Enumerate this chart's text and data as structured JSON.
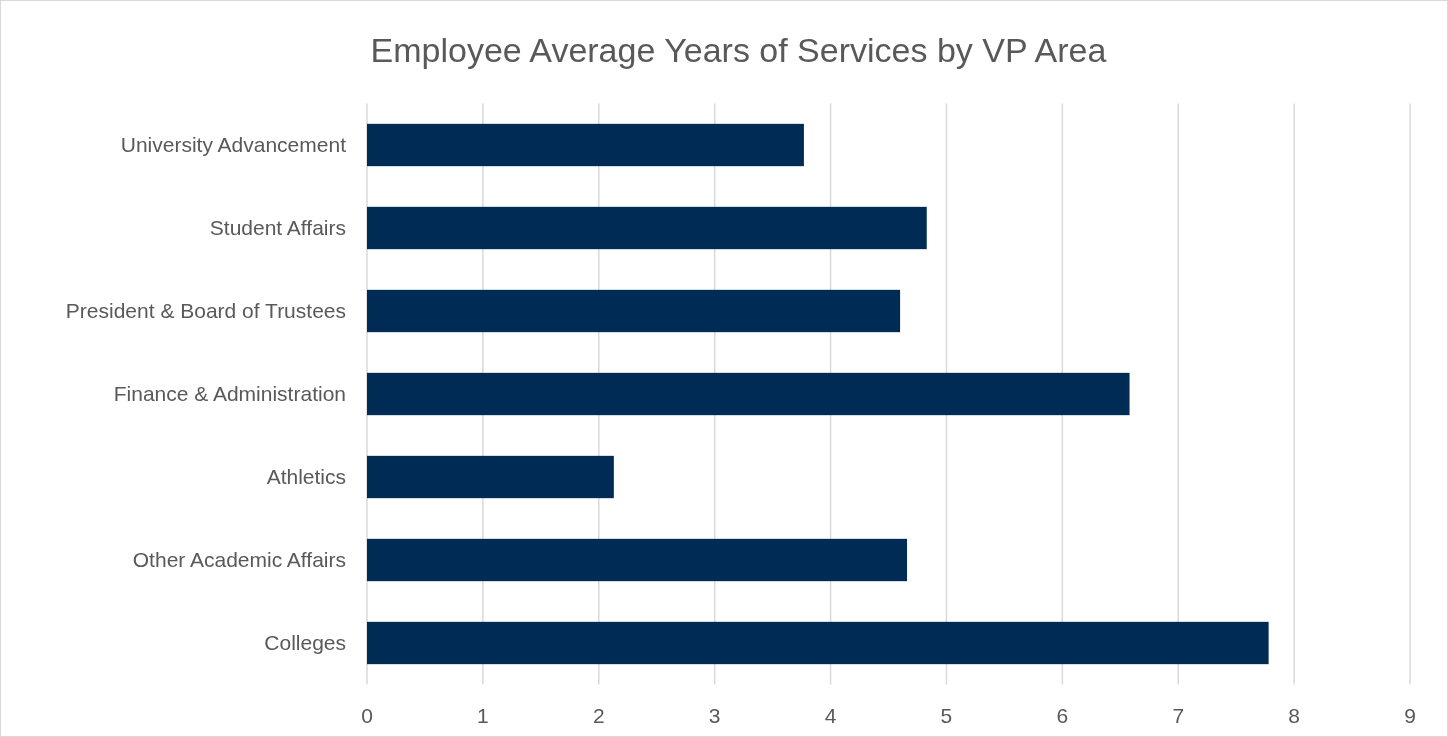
{
  "chart_data": {
    "type": "bar",
    "orientation": "horizontal",
    "title": "Employee Average Years of Services by VP Area",
    "categories": [
      "University Advancement",
      "Student Affairs",
      "President & Board of Trustees",
      "Finance & Administration",
      "Athletics",
      "Other Academic Affairs",
      "Colleges"
    ],
    "values": [
      3.77,
      4.83,
      4.6,
      6.58,
      2.13,
      4.66,
      7.78
    ],
    "color": "#002b55",
    "xlim": [
      0,
      9
    ],
    "xticks": [
      0,
      1,
      2,
      3,
      4,
      5,
      6,
      7,
      8,
      9
    ],
    "grid": "x"
  }
}
